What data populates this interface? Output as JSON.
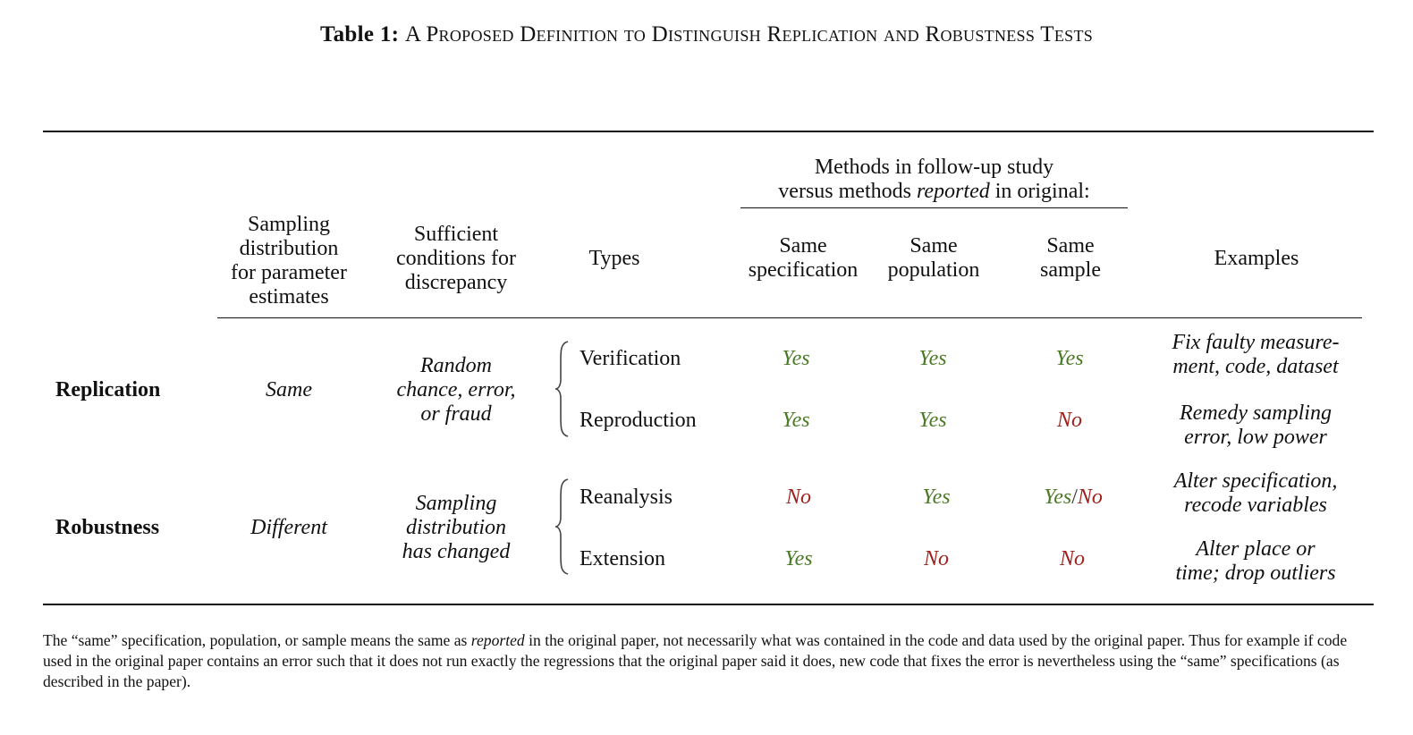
{
  "title": {
    "label": "Table 1:",
    "text": "A Proposed Definition to Distinguish Replication and Robustness Tests"
  },
  "header": {
    "methods_group_line1": "Methods in follow-up study",
    "methods_group_line2_a": "versus methods ",
    "methods_group_line2_em": "reported",
    "methods_group_line2_b": " in original:",
    "columns": {
      "sampling": [
        "Sampling",
        "distribution",
        "for parameter",
        "estimates"
      ],
      "sufficient": [
        "Sufficient",
        "conditions for",
        "discrepancy"
      ],
      "types": "Types",
      "same_specification": [
        "Same",
        "specification"
      ],
      "same_population": [
        "Same",
        "population"
      ],
      "same_sample": [
        "Same",
        "sample"
      ],
      "examples": "Examples"
    }
  },
  "groups": [
    {
      "name": "Replication",
      "sampling": "Same",
      "sufficient": [
        "Random",
        "chance, error,",
        "or fraud"
      ],
      "rows": [
        {
          "type": "Verification",
          "spec": "Yes",
          "pop": "Yes",
          "sample": "Yes",
          "example": [
            "Fix faulty measure-",
            "ment, code, dataset"
          ]
        },
        {
          "type": "Reproduction",
          "spec": "Yes",
          "pop": "Yes",
          "sample": "No",
          "example": [
            "Remedy sampling",
            "error, low power"
          ]
        }
      ]
    },
    {
      "name": "Robustness",
      "sampling": "Different",
      "sufficient": [
        "Sampling",
        "distribution",
        "has changed"
      ],
      "rows": [
        {
          "type": "Reanalysis",
          "spec": "No",
          "pop": "Yes",
          "sample_yes": "Yes",
          "sample_sep": "/",
          "sample_no": "No",
          "example": [
            "Alter specification,",
            "recode variables"
          ]
        },
        {
          "type": "Extension",
          "spec": "Yes",
          "pop": "No",
          "sample": "No",
          "example": [
            "Alter place or",
            "time; drop outliers"
          ]
        }
      ]
    }
  ],
  "note": {
    "part1": "The “same” specification, population, or sample means the same as ",
    "em": "reported",
    "part2": " in the original paper, not necessarily what was contained in the code and data used by the original paper. Thus for example if code used in the original paper contains an error such that it does not run exactly the regressions that the original paper said it does, new code that fixes the error is nevertheless using the “same” specifications (as described in the paper)."
  },
  "colors": {
    "yes": "#4a7a26",
    "no": "#a0201c"
  }
}
